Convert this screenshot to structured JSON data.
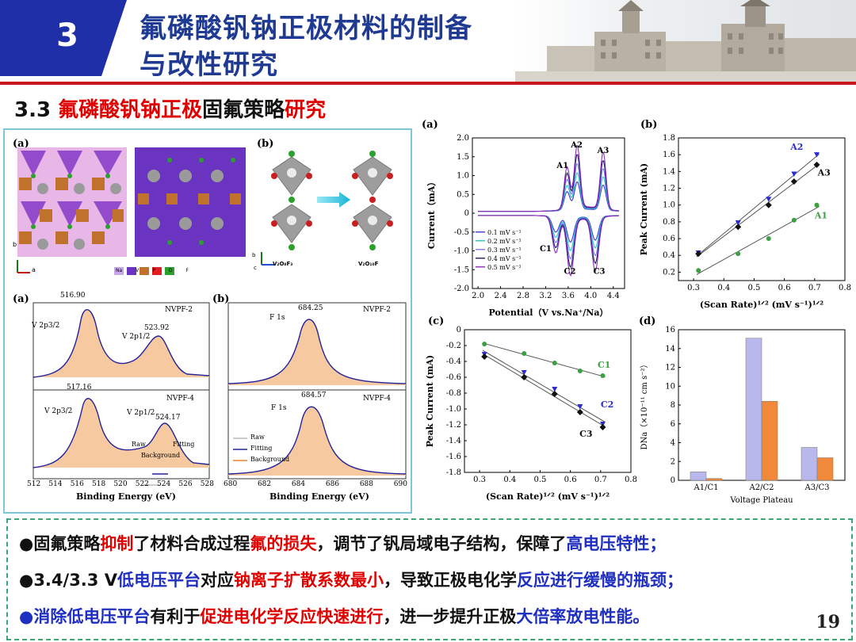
{
  "header": {
    "section_number": "3",
    "title_line1": "氟磷酸钒钠正极材料的制备",
    "title_line2": "与改性研究"
  },
  "section": {
    "num": "3.3 ",
    "part1": "氟磷酸钒钠正极",
    "part2": "固氟策略",
    "part3": "研究"
  },
  "left_figure": {
    "crystal_label_a": "(a)",
    "crystal_label_b": "(b)",
    "octa1_label": "V₂O₈F₃",
    "octa2_label": "V₂O₁₀F",
    "legend": [
      "Na",
      "V",
      "P",
      "O",
      "F"
    ],
    "axis_b": "b",
    "axis_a": "a",
    "axis_c": "c",
    "xps_label_a": "(a)",
    "xps_label_b": "(b)",
    "v_top_sample": "NVPF-2",
    "v_bottom_sample": "NVPF-4",
    "f_top_sample": "NVPF-2",
    "f_bottom_sample": "NVPF-4",
    "v_top_peak1": "516.90",
    "v_top_peak2": "523.92",
    "v_bottom_peak1": "517.16",
    "v_bottom_peak2": "524.17",
    "v2p32": "V 2p3/2",
    "v2p12": "V 2p1/2",
    "f_top_peak": "684.25",
    "f_bottom_peak": "684.57",
    "f1s": "F 1s",
    "v_legend": {
      "raw": "Raw",
      "fitting": "Fitting",
      "background": "Background"
    },
    "f_legend": {
      "raw": "Raw",
      "fitting": "Fitting",
      "background": "Background"
    },
    "v_xticks": [
      "512",
      "514",
      "516",
      "518",
      "520",
      "522",
      "524",
      "526",
      "528"
    ],
    "f_xticks": [
      "680",
      "682",
      "684",
      "686",
      "688",
      "690"
    ],
    "xlabel": "Binding Energy (eV)"
  },
  "chart_a": {
    "label": "(a)",
    "type": "line",
    "xlabel": "Potential（V vs.Na⁺/Na）",
    "ylabel": "Current（mA）",
    "xticks": [
      "2.0",
      "2.4",
      "2.8",
      "3.2",
      "3.6",
      "4.0",
      "4.4"
    ],
    "yticks": [
      "2.0",
      "1.5",
      "1.0",
      "0.5",
      "0",
      "-0.5",
      "-1.0",
      "-1.5",
      "-2.0"
    ],
    "xlim": [
      1.9,
      4.6
    ],
    "ylim": [
      -2.0,
      2.0
    ],
    "peak_labels": [
      "A1",
      "A2",
      "A3",
      "C1",
      "C2",
      "C3"
    ],
    "legend": [
      "0.1 mV s⁻¹",
      "0.2 mV s⁻¹",
      "0.3 mV s⁻¹",
      "0.4 mV s⁻¹",
      "0.5 mV s⁻¹"
    ],
    "colors": [
      "#3b3bd6",
      "#28c8c8",
      "#7a7af0",
      "#202060",
      "#8a2bbe"
    ]
  },
  "chart_b": {
    "label": "(b)",
    "type": "scatter",
    "xlabel": "(Scan Rate)¹ᐟ² (mV s⁻¹)¹ᐟ²",
    "ylabel": "Peak Current (mA)",
    "xticks": [
      "0.3",
      "0.4",
      "0.5",
      "0.6",
      "0.7",
      "0.8"
    ],
    "yticks": [
      "1.8",
      "1.6",
      "1.4",
      "1.2",
      "1.0",
      "0.8",
      "0.6",
      "0.4",
      "0.2"
    ],
    "xlim": [
      0.25,
      0.8
    ],
    "ylim": [
      0.1,
      1.8
    ],
    "x": [
      0.316,
      0.447,
      0.548,
      0.632,
      0.707
    ],
    "series": [
      {
        "name": "A2",
        "values": [
          0.43,
          0.79,
          1.07,
          1.37,
          1.6
        ],
        "color": "#2b2bd0"
      },
      {
        "name": "A3",
        "values": [
          0.42,
          0.74,
          1.0,
          1.28,
          1.48
        ],
        "color": "#111111"
      },
      {
        "name": "A1",
        "values": [
          0.22,
          0.42,
          0.6,
          0.82,
          1.0
        ],
        "color": "#3aa040"
      }
    ]
  },
  "chart_c": {
    "label": "(c)",
    "type": "scatter",
    "xlabel": "(Scan Rate)¹ᐟ² (mV s⁻¹)¹ᐟ²",
    "ylabel": "Peak Current (mA)",
    "xticks": [
      "0.3",
      "0.4",
      "0.5",
      "0.6",
      "0.7",
      "0.8"
    ],
    "yticks": [
      "0",
      "-0.2",
      "-0.4",
      "-0.6",
      "-0.8",
      "-1.0",
      "-1.2",
      "-1.4",
      "-1.6",
      "-1.8"
    ],
    "xlim": [
      0.25,
      0.8
    ],
    "ylim": [
      -1.8,
      0.0
    ],
    "x": [
      0.316,
      0.447,
      0.548,
      0.632,
      0.707
    ],
    "series": [
      {
        "name": "C1",
        "values": [
          -0.18,
          -0.3,
          -0.42,
          -0.52,
          -0.58
        ],
        "color": "#3aa040"
      },
      {
        "name": "C2",
        "values": [
          -0.31,
          -0.54,
          -0.75,
          -0.97,
          -1.19
        ],
        "color": "#2b2bd0"
      },
      {
        "name": "C3",
        "values": [
          -0.34,
          -0.6,
          -0.81,
          -1.04,
          -1.23
        ],
        "color": "#111111"
      }
    ]
  },
  "chart_d": {
    "label": "(d)",
    "type": "bar",
    "xlabel": "Voltage Plateau",
    "ylabel": "DNa（×10⁻¹¹ cm s⁻²）",
    "categories": [
      "A1/C1",
      "A2/C2",
      "A3/C3"
    ],
    "yticks": [
      "16",
      "14",
      "12",
      "10",
      "8",
      "6",
      "4",
      "2",
      "0"
    ],
    "ylim": [
      0,
      16
    ],
    "series": [
      {
        "values": [
          0.9,
          15.1,
          3.5
        ],
        "color": "#b8b8ec"
      },
      {
        "values": [
          0.2,
          8.4,
          2.4
        ],
        "color": "#f08a3a"
      }
    ]
  },
  "bullets": [
    {
      "segs": [
        [
          "●固氟策略",
          "dark"
        ],
        [
          "抑制",
          "red"
        ],
        [
          "了材料合成过程",
          "dark"
        ],
        [
          "氟的损失",
          "red"
        ],
        [
          "，调节了钒局域电子结构，保障了",
          "dark"
        ],
        [
          "高电压特性；",
          "blue"
        ]
      ]
    },
    {
      "segs": [
        [
          "●3.4/3.3 V",
          "dark"
        ],
        [
          "低电压平台",
          "blue"
        ],
        [
          "对应",
          "dark"
        ],
        [
          "钠离子扩散系数最小",
          "red"
        ],
        [
          "，导致正极电化学",
          "dark"
        ],
        [
          "反应进行缓慢的瓶颈；",
          "blue"
        ]
      ]
    },
    {
      "segs": [
        [
          "●",
          "blue"
        ],
        [
          "消除低电压平台",
          "blue"
        ],
        [
          "有利于",
          "dark"
        ],
        [
          "促进电化学反应快速进行",
          "red"
        ],
        [
          "，进一步提升正极",
          "dark"
        ],
        [
          "大倍率放电性能。",
          "blue"
        ]
      ]
    }
  ],
  "page_number": "19"
}
